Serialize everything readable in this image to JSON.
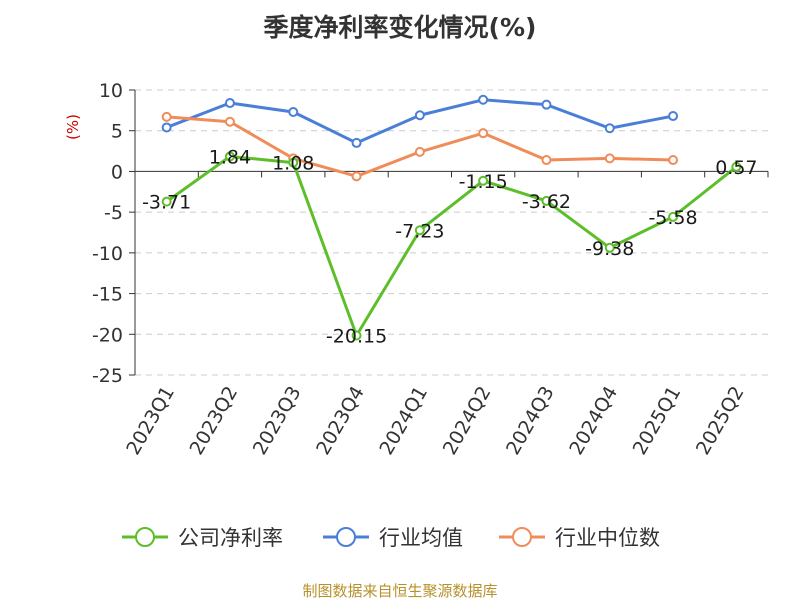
{
  "chart_data": {
    "type": "line",
    "title": "季度净利率变化情况(%)",
    "ylabel": "(%)",
    "xlabel": "",
    "ylim": [
      -25,
      10
    ],
    "yticks": [
      10,
      5,
      0,
      -5,
      -10,
      -15,
      -20,
      -25
    ],
    "categories": [
      "2023Q1",
      "2023Q2",
      "2023Q3",
      "2023Q4",
      "2024Q1",
      "2024Q2",
      "2024Q3",
      "2024Q4",
      "2025Q1",
      "2025Q2"
    ],
    "grid": true,
    "legend_position": "bottom",
    "series": [
      {
        "name": "公司净利率",
        "color": "#5cbf2a",
        "values": [
          -3.71,
          1.84,
          1.08,
          -20.15,
          -7.23,
          -1.15,
          -3.62,
          -9.38,
          -5.58,
          0.57
        ],
        "labels": [
          "-3.71",
          "1.84",
          "1.08",
          "-20.15",
          "-7.23",
          "-1.15",
          "-3.62",
          "-9.38",
          "-5.58",
          "0.57"
        ]
      },
      {
        "name": "行业均值",
        "color": "#4a7fd8",
        "values": [
          5.4,
          8.4,
          7.3,
          3.5,
          6.9,
          8.8,
          8.2,
          5.3,
          6.8,
          null
        ]
      },
      {
        "name": "行业中位数",
        "color": "#f08c5a",
        "values": [
          6.7,
          6.1,
          1.6,
          -0.6,
          2.4,
          4.7,
          1.4,
          1.6,
          1.4,
          null
        ]
      }
    ]
  },
  "footer": {
    "source": "制图数据来自恒生聚源数据库"
  },
  "colors": {
    "ylabel": "#cc0000",
    "grid": "#cccccc",
    "axis": "#333333"
  }
}
